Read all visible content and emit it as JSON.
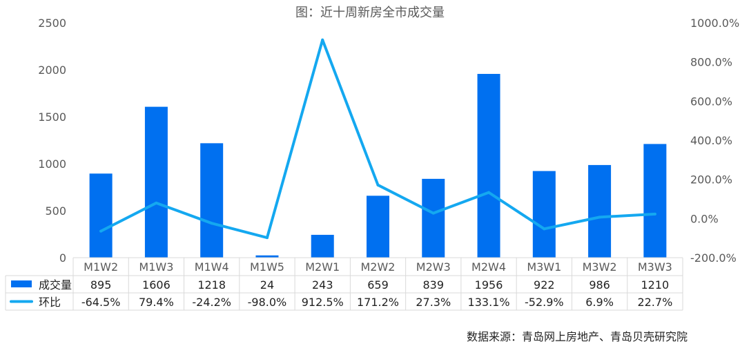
{
  "chart_data": {
    "type": "bar",
    "title": "图：近十周新房全市成交量",
    "categories": [
      "M1W2",
      "M1W3",
      "M1W4",
      "M1W5",
      "M2W1",
      "M2W2",
      "M2W3",
      "M2W4",
      "M3W1",
      "M3W2",
      "M3W3"
    ],
    "series": [
      {
        "name": "成交量",
        "type": "bar",
        "axis": "left",
        "color": "#0070f0",
        "values": [
          895,
          1606,
          1218,
          24,
          243,
          659,
          839,
          1956,
          922,
          986,
          1210
        ]
      },
      {
        "name": "环比",
        "type": "line",
        "axis": "right",
        "color": "#14a8f0",
        "values": [
          -64.5,
          79.4,
          -24.2,
          -98.0,
          912.5,
          171.2,
          27.3,
          133.1,
          -52.9,
          6.9,
          22.7
        ],
        "labels": [
          "-64.5%",
          "79.4%",
          "-24.2%",
          "-98.0%",
          "912.5%",
          "171.2%",
          "27.3%",
          "133.1%",
          "-52.9%",
          "6.9%",
          "22.7%"
        ]
      }
    ],
    "y_left": {
      "min": 0,
      "max": 2500,
      "ticks": [
        "0",
        "500",
        "1000",
        "1500",
        "2000",
        "2500"
      ]
    },
    "y_right": {
      "min": -200,
      "max": 1000,
      "ticks": [
        "-200.0%",
        "0.0%",
        "200.0%",
        "400.0%",
        "600.0%",
        "800.0%",
        "1000.0%"
      ]
    },
    "grid": false,
    "legend": "data-table"
  },
  "source": "数据来源：青岛网上房地产、青岛贝壳研究院"
}
